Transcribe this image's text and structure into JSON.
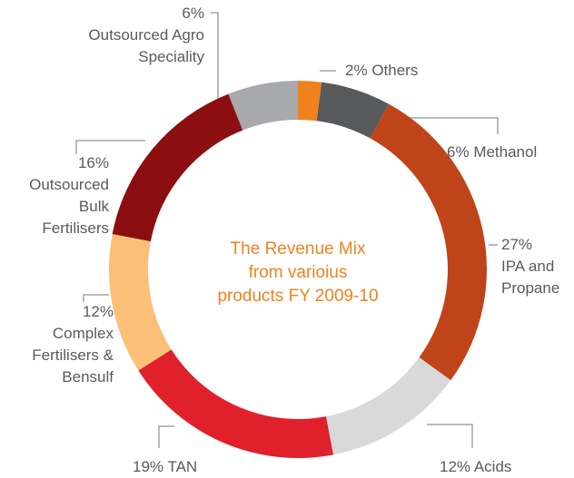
{
  "chart_data": {
    "type": "donut",
    "title": "The Revenue Mix from varioius products FY 2009-10",
    "categories": [
      "Others",
      "Methanol",
      "IPA and Propane",
      "Acids",
      "TAN",
      "Complex Fertilisers & Bensulf",
      "Outsourced Bulk Fertilisers",
      "Outsourced Agro Speciality"
    ],
    "values": [
      2,
      6,
      27,
      12,
      19,
      12,
      16,
      6
    ],
    "value_labels": [
      "2%",
      "6%",
      "27%",
      "12%",
      "19%",
      "12%",
      "16%",
      "6%"
    ],
    "colors": [
      "#f0821e",
      "#58595b",
      "#c0441a",
      "#d9d9d9",
      "#e0202a",
      "#fbbf78",
      "#8b0e10",
      "#a7a9ac"
    ]
  }
}
